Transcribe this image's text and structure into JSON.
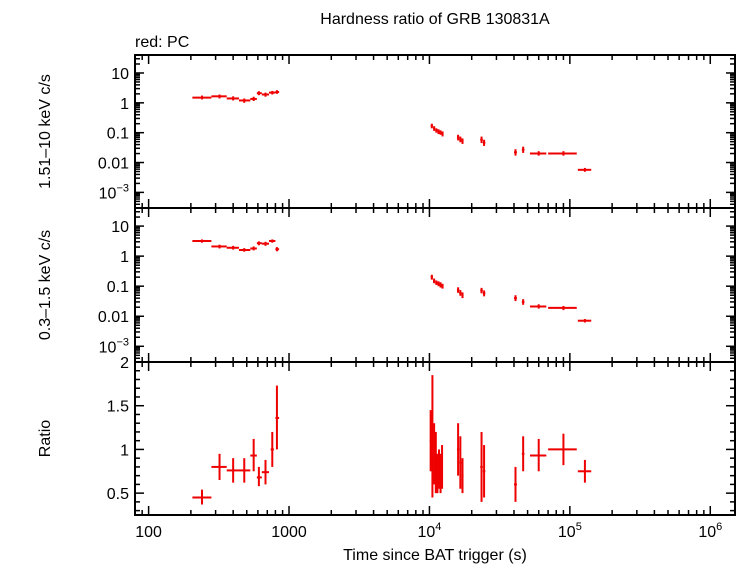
{
  "chart_data": {
    "type": "scatter",
    "title": "Hardness ratio of GRB 130831A",
    "subtitle": "red: PC",
    "xlabel": "Time since BAT trigger (s)",
    "x_scale": "log",
    "x_ticks": [
      {
        "value": 100,
        "label": "100"
      },
      {
        "value": 1000,
        "label": "1000"
      },
      {
        "value": 10000,
        "label": "10",
        "sup": "4"
      },
      {
        "value": 100000,
        "label": "10",
        "sup": "5"
      },
      {
        "value": 1000000,
        "label": "10",
        "sup": "6"
      }
    ],
    "xlim": [
      80,
      1500000
    ],
    "series_color": "#ee0000",
    "panels": [
      {
        "ylabel": "1.51–10 keV c/s",
        "y_scale": "log",
        "ylim": [
          0.0003,
          40
        ],
        "y_ticks": [
          {
            "value": 10,
            "label": "10"
          },
          {
            "value": 1,
            "label": "1"
          },
          {
            "value": 0.1,
            "label": "0.1"
          },
          {
            "value": 0.01,
            "label": "0.01"
          },
          {
            "value": 0.001,
            "label": "10",
            "sup": "−3"
          }
        ],
        "points": [
          {
            "x": 240,
            "y": 1.5,
            "xlo": 205,
            "xhi": 280,
            "ylo": 1.3,
            "yhi": 1.75
          },
          {
            "x": 320,
            "y": 1.65,
            "xlo": 280,
            "xhi": 360,
            "ylo": 1.4,
            "yhi": 1.9
          },
          {
            "x": 400,
            "y": 1.4,
            "xlo": 360,
            "xhi": 440,
            "ylo": 1.2,
            "yhi": 1.65
          },
          {
            "x": 480,
            "y": 1.2,
            "xlo": 440,
            "xhi": 530,
            "ylo": 1.0,
            "yhi": 1.4
          },
          {
            "x": 560,
            "y": 1.35,
            "xlo": 530,
            "xhi": 590,
            "ylo": 1.15,
            "yhi": 1.6
          },
          {
            "x": 610,
            "y": 2.1,
            "xlo": 590,
            "xhi": 640,
            "ylo": 1.8,
            "yhi": 2.45
          },
          {
            "x": 680,
            "y": 1.9,
            "xlo": 640,
            "xhi": 720,
            "ylo": 1.6,
            "yhi": 2.2
          },
          {
            "x": 760,
            "y": 2.2,
            "xlo": 720,
            "xhi": 800,
            "ylo": 1.9,
            "yhi": 2.5
          },
          {
            "x": 820,
            "y": 2.3,
            "xlo": 800,
            "xhi": 850,
            "ylo": 2.0,
            "yhi": 2.65
          },
          {
            "x": 10400,
            "y": 0.17,
            "xlo": 10200,
            "xhi": 10600,
            "ylo": 0.14,
            "yhi": 0.2
          },
          {
            "x": 10800,
            "y": 0.14,
            "xlo": 10600,
            "xhi": 11000,
            "ylo": 0.115,
            "yhi": 0.165
          },
          {
            "x": 11200,
            "y": 0.12,
            "xlo": 11000,
            "xhi": 11400,
            "ylo": 0.1,
            "yhi": 0.14
          },
          {
            "x": 11600,
            "y": 0.11,
            "xlo": 11400,
            "xhi": 11800,
            "ylo": 0.09,
            "yhi": 0.13
          },
          {
            "x": 12000,
            "y": 0.1,
            "xlo": 11800,
            "xhi": 12200,
            "ylo": 0.085,
            "yhi": 0.12
          },
          {
            "x": 12400,
            "y": 0.09,
            "xlo": 12200,
            "xhi": 12600,
            "ylo": 0.075,
            "yhi": 0.11
          },
          {
            "x": 16000,
            "y": 0.07,
            "xlo": 15700,
            "xhi": 16300,
            "ylo": 0.055,
            "yhi": 0.085
          },
          {
            "x": 16600,
            "y": 0.06,
            "xlo": 16300,
            "xhi": 16900,
            "ylo": 0.048,
            "yhi": 0.074
          },
          {
            "x": 17200,
            "y": 0.052,
            "xlo": 16900,
            "xhi": 17500,
            "ylo": 0.042,
            "yhi": 0.064
          },
          {
            "x": 23500,
            "y": 0.058,
            "xlo": 23000,
            "xhi": 24000,
            "ylo": 0.045,
            "yhi": 0.074
          },
          {
            "x": 24500,
            "y": 0.046,
            "xlo": 24000,
            "xhi": 25000,
            "ylo": 0.036,
            "yhi": 0.058
          },
          {
            "x": 41000,
            "y": 0.022,
            "xlo": 40000,
            "xhi": 42000,
            "ylo": 0.017,
            "yhi": 0.028
          },
          {
            "x": 46500,
            "y": 0.027,
            "xlo": 45500,
            "xhi": 47500,
            "ylo": 0.021,
            "yhi": 0.034
          },
          {
            "x": 60000,
            "y": 0.02,
            "xlo": 52000,
            "xhi": 68000,
            "ylo": 0.017,
            "yhi": 0.024
          },
          {
            "x": 90000,
            "y": 0.02,
            "xlo": 70000,
            "xhi": 112000,
            "ylo": 0.017,
            "yhi": 0.024
          },
          {
            "x": 128000,
            "y": 0.0057,
            "xlo": 114000,
            "xhi": 142000,
            "ylo": 0.0049,
            "yhi": 0.0066
          }
        ]
      },
      {
        "ylabel": "0.3–1.5 keV c/s",
        "y_scale": "log",
        "ylim": [
          0.0003,
          40
        ],
        "y_ticks": [
          {
            "value": 10,
            "label": "10"
          },
          {
            "value": 1,
            "label": "1"
          },
          {
            "value": 0.1,
            "label": "0.1"
          },
          {
            "value": 0.01,
            "label": "0.01"
          },
          {
            "value": 0.001,
            "label": "10",
            "sup": "−3"
          }
        ],
        "points": [
          {
            "x": 240,
            "y": 3.2,
            "xlo": 205,
            "xhi": 280,
            "ylo": 2.8,
            "yhi": 3.6
          },
          {
            "x": 320,
            "y": 2.1,
            "xlo": 280,
            "xhi": 360,
            "ylo": 1.8,
            "yhi": 2.4
          },
          {
            "x": 400,
            "y": 1.9,
            "xlo": 360,
            "xhi": 440,
            "ylo": 1.65,
            "yhi": 2.2
          },
          {
            "x": 480,
            "y": 1.6,
            "xlo": 440,
            "xhi": 530,
            "ylo": 1.4,
            "yhi": 1.85
          },
          {
            "x": 560,
            "y": 1.8,
            "xlo": 530,
            "xhi": 590,
            "ylo": 1.55,
            "yhi": 2.1
          },
          {
            "x": 610,
            "y": 2.7,
            "xlo": 590,
            "xhi": 640,
            "ylo": 2.3,
            "yhi": 3.1
          },
          {
            "x": 680,
            "y": 2.6,
            "xlo": 640,
            "xhi": 720,
            "ylo": 2.2,
            "yhi": 3.0
          },
          {
            "x": 760,
            "y": 3.2,
            "xlo": 720,
            "xhi": 800,
            "ylo": 2.8,
            "yhi": 3.6
          },
          {
            "x": 820,
            "y": 1.7,
            "xlo": 800,
            "xhi": 850,
            "ylo": 1.45,
            "yhi": 2.0
          },
          {
            "x": 10400,
            "y": 0.2,
            "xlo": 10200,
            "xhi": 10600,
            "ylo": 0.165,
            "yhi": 0.24
          },
          {
            "x": 10800,
            "y": 0.15,
            "xlo": 10600,
            "xhi": 11000,
            "ylo": 0.125,
            "yhi": 0.18
          },
          {
            "x": 11200,
            "y": 0.13,
            "xlo": 11000,
            "xhi": 11400,
            "ylo": 0.11,
            "yhi": 0.155
          },
          {
            "x": 11600,
            "y": 0.12,
            "xlo": 11400,
            "xhi": 11800,
            "ylo": 0.1,
            "yhi": 0.145
          },
          {
            "x": 12000,
            "y": 0.11,
            "xlo": 11800,
            "xhi": 12200,
            "ylo": 0.09,
            "yhi": 0.135
          },
          {
            "x": 12400,
            "y": 0.1,
            "xlo": 12200,
            "xhi": 12600,
            "ylo": 0.083,
            "yhi": 0.12
          },
          {
            "x": 16000,
            "y": 0.075,
            "xlo": 15700,
            "xhi": 16300,
            "ylo": 0.06,
            "yhi": 0.092
          },
          {
            "x": 16600,
            "y": 0.06,
            "xlo": 16300,
            "xhi": 16900,
            "ylo": 0.048,
            "yhi": 0.074
          },
          {
            "x": 17200,
            "y": 0.05,
            "xlo": 16900,
            "xhi": 17500,
            "ylo": 0.04,
            "yhi": 0.062
          },
          {
            "x": 23500,
            "y": 0.072,
            "xlo": 23000,
            "xhi": 24000,
            "ylo": 0.058,
            "yhi": 0.088
          },
          {
            "x": 24500,
            "y": 0.058,
            "xlo": 24000,
            "xhi": 25000,
            "ylo": 0.046,
            "yhi": 0.072
          },
          {
            "x": 41000,
            "y": 0.04,
            "xlo": 40000,
            "xhi": 42000,
            "ylo": 0.032,
            "yhi": 0.05
          },
          {
            "x": 46500,
            "y": 0.03,
            "xlo": 45500,
            "xhi": 47500,
            "ylo": 0.024,
            "yhi": 0.037
          },
          {
            "x": 60000,
            "y": 0.021,
            "xlo": 52000,
            "xhi": 68000,
            "ylo": 0.018,
            "yhi": 0.025
          },
          {
            "x": 90000,
            "y": 0.019,
            "xlo": 70000,
            "xhi": 112000,
            "ylo": 0.016,
            "yhi": 0.022
          },
          {
            "x": 128000,
            "y": 0.0071,
            "xlo": 114000,
            "xhi": 142000,
            "ylo": 0.0062,
            "yhi": 0.0081
          }
        ]
      },
      {
        "ylabel": "Ratio",
        "y_scale": "linear",
        "ylim": [
          0.25,
          2.0
        ],
        "y_ticks": [
          {
            "value": 2,
            "label": "2"
          },
          {
            "value": 1.5,
            "label": "1.5"
          },
          {
            "value": 1,
            "label": "1"
          },
          {
            "value": 0.5,
            "label": "0.5"
          }
        ],
        "points": [
          {
            "x": 240,
            "y": 0.45,
            "xlo": 205,
            "xhi": 280,
            "ylo": 0.37,
            "yhi": 0.54
          },
          {
            "x": 320,
            "y": 0.8,
            "xlo": 280,
            "xhi": 360,
            "ylo": 0.65,
            "yhi": 0.95
          },
          {
            "x": 400,
            "y": 0.76,
            "xlo": 360,
            "xhi": 440,
            "ylo": 0.62,
            "yhi": 0.9
          },
          {
            "x": 480,
            "y": 0.76,
            "xlo": 440,
            "xhi": 530,
            "ylo": 0.62,
            "yhi": 0.9
          },
          {
            "x": 560,
            "y": 0.93,
            "xlo": 530,
            "xhi": 590,
            "ylo": 0.75,
            "yhi": 1.12
          },
          {
            "x": 610,
            "y": 0.68,
            "xlo": 590,
            "xhi": 640,
            "ylo": 0.58,
            "yhi": 0.8
          },
          {
            "x": 680,
            "y": 0.74,
            "xlo": 640,
            "xhi": 720,
            "ylo": 0.6,
            "yhi": 0.88
          },
          {
            "x": 760,
            "y": 1.0,
            "xlo": 740,
            "xhi": 780,
            "ylo": 0.8,
            "yhi": 1.2
          },
          {
            "x": 820,
            "y": 1.36,
            "xlo": 800,
            "xhi": 850,
            "ylo": 1.0,
            "yhi": 1.73
          },
          {
            "x": 10200,
            "y": 1.1,
            "xlo": 10050,
            "xhi": 10350,
            "ylo": 0.75,
            "yhi": 1.45
          },
          {
            "x": 10500,
            "y": 1.1,
            "xlo": 10350,
            "xhi": 10650,
            "ylo": 0.45,
            "yhi": 1.85
          },
          {
            "x": 10800,
            "y": 0.95,
            "xlo": 10650,
            "xhi": 10950,
            "ylo": 0.6,
            "yhi": 1.3
          },
          {
            "x": 11100,
            "y": 0.85,
            "xlo": 10950,
            "xhi": 11250,
            "ylo": 0.5,
            "yhi": 1.2
          },
          {
            "x": 11400,
            "y": 0.72,
            "xlo": 11250,
            "xhi": 11550,
            "ylo": 0.5,
            "yhi": 0.95
          },
          {
            "x": 11700,
            "y": 0.78,
            "xlo": 11550,
            "xhi": 11850,
            "ylo": 0.55,
            "yhi": 1.0
          },
          {
            "x": 12000,
            "y": 0.72,
            "xlo": 11850,
            "xhi": 12150,
            "ylo": 0.5,
            "yhi": 0.95
          },
          {
            "x": 12300,
            "y": 0.8,
            "xlo": 12150,
            "xhi": 12450,
            "ylo": 0.55,
            "yhi": 1.05
          },
          {
            "x": 16000,
            "y": 1.0,
            "xlo": 15700,
            "xhi": 16300,
            "ylo": 0.7,
            "yhi": 1.3
          },
          {
            "x": 16600,
            "y": 0.85,
            "xlo": 16300,
            "xhi": 16900,
            "ylo": 0.55,
            "yhi": 1.15
          },
          {
            "x": 17200,
            "y": 0.7,
            "xlo": 16900,
            "xhi": 17500,
            "ylo": 0.5,
            "yhi": 0.9
          },
          {
            "x": 23500,
            "y": 0.8,
            "xlo": 23000,
            "xhi": 24000,
            "ylo": 0.4,
            "yhi": 1.2
          },
          {
            "x": 24500,
            "y": 0.75,
            "xlo": 24000,
            "xhi": 25000,
            "ylo": 0.45,
            "yhi": 1.05
          },
          {
            "x": 41000,
            "y": 0.6,
            "xlo": 40000,
            "xhi": 42000,
            "ylo": 0.4,
            "yhi": 0.8
          },
          {
            "x": 46500,
            "y": 0.95,
            "xlo": 45500,
            "xhi": 47500,
            "ylo": 0.75,
            "yhi": 1.15
          },
          {
            "x": 60000,
            "y": 0.93,
            "xlo": 52000,
            "xhi": 68000,
            "ylo": 0.75,
            "yhi": 1.12
          },
          {
            "x": 90000,
            "y": 1.0,
            "xlo": 70000,
            "xhi": 112000,
            "ylo": 0.82,
            "yhi": 1.18
          },
          {
            "x": 128000,
            "y": 0.75,
            "xlo": 114000,
            "xhi": 142000,
            "ylo": 0.62,
            "yhi": 0.88
          }
        ]
      }
    ]
  }
}
